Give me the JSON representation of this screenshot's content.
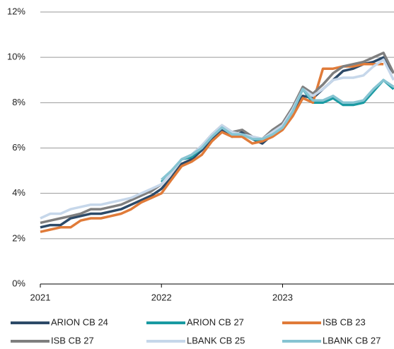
{
  "chart_data": {
    "type": "line",
    "x": [
      2021.0,
      2021.083,
      2021.167,
      2021.25,
      2021.333,
      2021.417,
      2021.5,
      2021.583,
      2021.667,
      2021.75,
      2021.833,
      2021.917,
      2022.0,
      2022.083,
      2022.167,
      2022.25,
      2022.333,
      2022.417,
      2022.5,
      2022.583,
      2022.667,
      2022.75,
      2022.833,
      2022.917,
      2023.0,
      2023.083,
      2023.167,
      2023.25,
      2023.333,
      2023.417,
      2023.5,
      2023.583,
      2023.667,
      2023.75,
      2023.833,
      2023.917
    ],
    "xlim": [
      2021,
      2023.92
    ],
    "xticks": [
      2021,
      2022,
      2023
    ],
    "ylim": [
      0,
      12
    ],
    "yticks": [
      {
        "value": 0,
        "label": "0%"
      },
      {
        "value": 2,
        "label": "2%"
      },
      {
        "value": 4,
        "label": "4%"
      },
      {
        "value": 6,
        "label": "6%"
      },
      {
        "value": 8,
        "label": "8%"
      },
      {
        "value": 10,
        "label": "10%"
      },
      {
        "value": 12,
        "label": "12%"
      }
    ],
    "grid": true,
    "legend": "bottom",
    "series": [
      {
        "name": "ARION CB 24",
        "color": "#2d4a68",
        "values": [
          2.5,
          2.6,
          2.6,
          2.9,
          3.0,
          3.1,
          3.1,
          3.2,
          3.3,
          3.5,
          3.7,
          3.9,
          4.2,
          4.7,
          5.3,
          5.5,
          5.9,
          6.4,
          6.8,
          6.5,
          6.7,
          6.4,
          6.2,
          6.6,
          6.9,
          7.5,
          8.3,
          8.2,
          8.6,
          9.0,
          9.4,
          9.5,
          9.7,
          9.8,
          10.0,
          9.3
        ]
      },
      {
        "name": "ARION CB 27",
        "color": "#1a9aa2",
        "values": [
          null,
          null,
          null,
          null,
          null,
          null,
          null,
          null,
          null,
          null,
          null,
          null,
          4.5,
          4.9,
          5.5,
          5.6,
          6.0,
          6.5,
          6.9,
          6.6,
          6.6,
          6.4,
          6.3,
          6.6,
          6.9,
          7.6,
          8.6,
          8.0,
          8.0,
          8.2,
          7.9,
          7.9,
          8.0,
          8.5,
          9.0,
          8.6
        ]
      },
      {
        "name": "ISB CB 23",
        "color": "#e07b39",
        "values": [
          2.3,
          2.4,
          2.5,
          2.5,
          2.8,
          2.9,
          2.9,
          3.0,
          3.1,
          3.3,
          3.6,
          3.8,
          4.0,
          4.6,
          5.2,
          5.4,
          5.7,
          6.3,
          6.7,
          6.5,
          6.5,
          6.2,
          6.3,
          6.5,
          6.8,
          7.4,
          8.2,
          8.0,
          9.5,
          9.5,
          9.6,
          9.6,
          9.7,
          9.7,
          9.7,
          null
        ]
      },
      {
        "name": "ISB CB 27",
        "color": "#7f7f7f",
        "values": [
          2.7,
          2.8,
          2.9,
          3.0,
          3.1,
          3.3,
          3.3,
          3.4,
          3.5,
          3.7,
          3.9,
          4.1,
          4.4,
          4.9,
          5.5,
          5.7,
          6.1,
          6.6,
          7.0,
          6.7,
          6.8,
          6.5,
          6.4,
          6.8,
          7.1,
          7.8,
          8.7,
          8.4,
          8.8,
          9.3,
          9.6,
          9.7,
          9.8,
          10.0,
          10.2,
          9.3
        ]
      },
      {
        "name": "LBANK CB 25",
        "color": "#c6d7ea",
        "values": [
          2.9,
          3.1,
          3.1,
          3.3,
          3.4,
          3.5,
          3.5,
          3.6,
          3.7,
          3.8,
          4.0,
          4.2,
          4.4,
          4.9,
          5.5,
          5.7,
          6.1,
          6.6,
          7.0,
          6.7,
          6.6,
          6.5,
          6.4,
          6.7,
          7.0,
          7.7,
          8.6,
          8.3,
          8.6,
          9.0,
          9.1,
          9.1,
          9.2,
          9.6,
          9.9,
          9.0
        ]
      },
      {
        "name": "LBANK CB 27",
        "color": "#86c4d2",
        "values": [
          null,
          null,
          null,
          null,
          null,
          null,
          null,
          null,
          null,
          null,
          null,
          null,
          4.6,
          5.0,
          5.5,
          5.7,
          6.0,
          6.5,
          6.9,
          6.6,
          6.6,
          6.4,
          6.4,
          6.6,
          6.9,
          7.6,
          8.6,
          8.1,
          8.1,
          8.3,
          8.0,
          8.0,
          8.1,
          8.6,
          9.0,
          8.7
        ]
      }
    ]
  }
}
